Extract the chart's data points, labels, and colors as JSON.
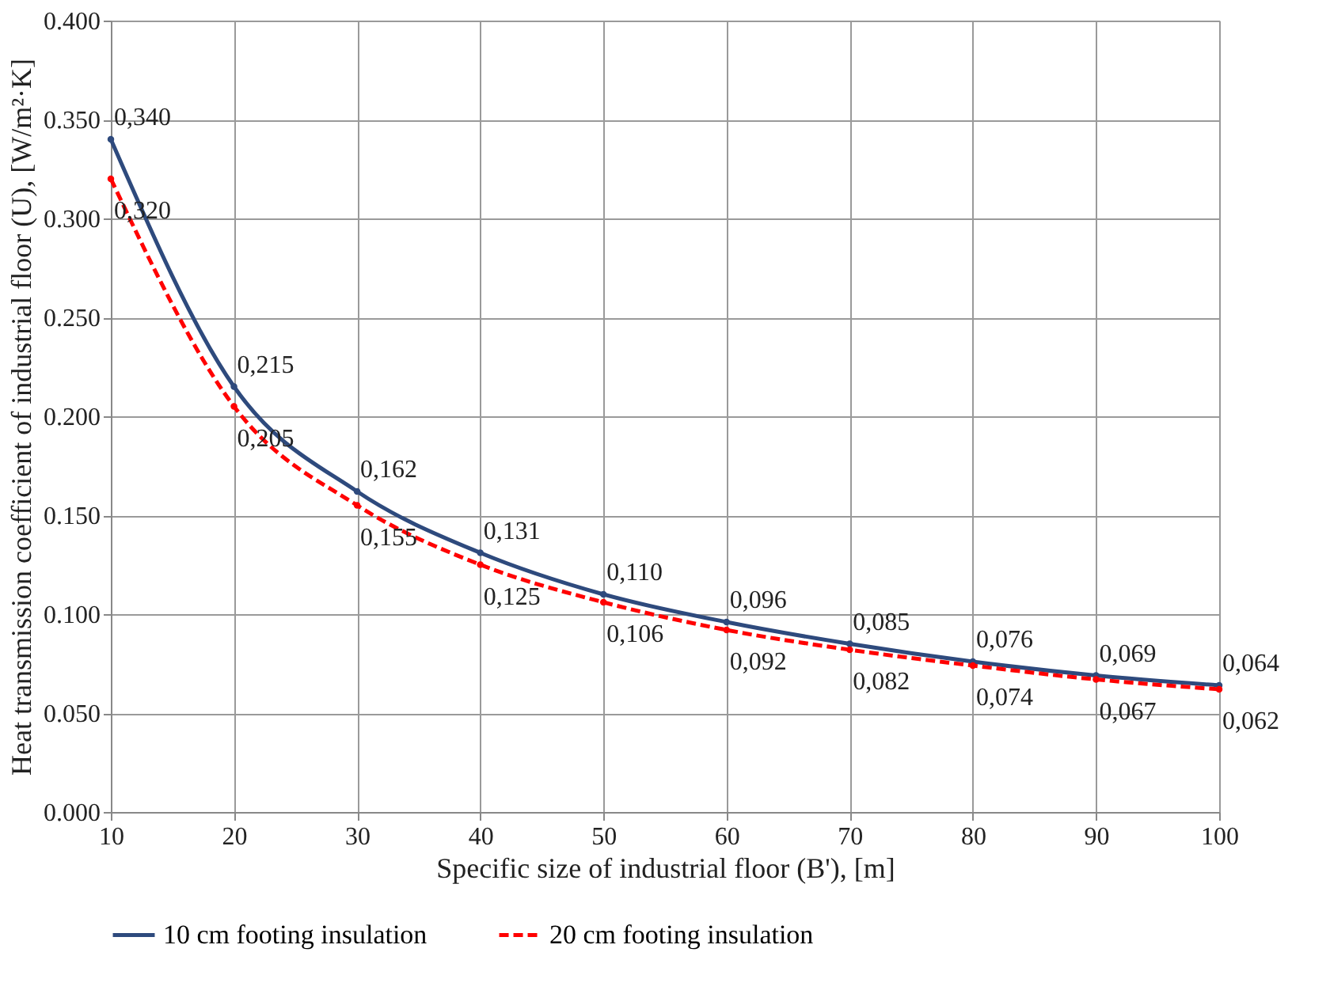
{
  "chart_data": {
    "type": "line",
    "xlabel": "Specific size of industrial floor (B'), [m]",
    "ylabel": "Heat transmission coefficient of industrial floor  (U), [W/m²·K]",
    "x": [
      10,
      20,
      30,
      40,
      50,
      60,
      70,
      80,
      90,
      100
    ],
    "series": [
      {
        "name": "10 cm footing insulation",
        "color": "#2e4a7d",
        "line_style": "solid",
        "values": [
          0.34,
          0.215,
          0.162,
          0.131,
          0.11,
          0.096,
          0.085,
          0.076,
          0.069,
          0.064
        ],
        "value_labels": [
          "0,340",
          "0,215",
          "0,162",
          "0,131",
          "0,110",
          "0,096",
          "0,085",
          "0,076",
          "0,069",
          "0,064"
        ]
      },
      {
        "name": "20 cm footing insulation",
        "color": "#ff0000",
        "line_style": "dashed",
        "values": [
          0.32,
          0.205,
          0.155,
          0.125,
          0.106,
          0.092,
          0.082,
          0.074,
          0.067,
          0.062
        ],
        "value_labels": [
          "0,320",
          "0,205",
          "0,155",
          "0,125",
          "0,106",
          "0,092",
          "0,082",
          "0,074",
          "0,067",
          "0,062"
        ]
      }
    ],
    "xlim": [
      10,
      100
    ],
    "xticks": [
      10,
      20,
      30,
      40,
      50,
      60,
      70,
      80,
      90,
      100
    ],
    "ylim": [
      0,
      0.4
    ],
    "yticks": [
      {
        "value": 0,
        "label": "0.000"
      },
      {
        "value": 0.05,
        "label": "0.050"
      },
      {
        "value": 0.1,
        "label": "0.100"
      },
      {
        "value": 0.15,
        "label": "0.150"
      },
      {
        "value": 0.2,
        "label": "0.200"
      },
      {
        "value": 0.25,
        "label": "0.250"
      },
      {
        "value": 0.3,
        "label": "0.300"
      },
      {
        "value": 0.35,
        "label": "0.350"
      },
      {
        "value": 0.4,
        "label": "0.400"
      }
    ],
    "grid": true,
    "legend": "bottom",
    "marker": "circle"
  }
}
